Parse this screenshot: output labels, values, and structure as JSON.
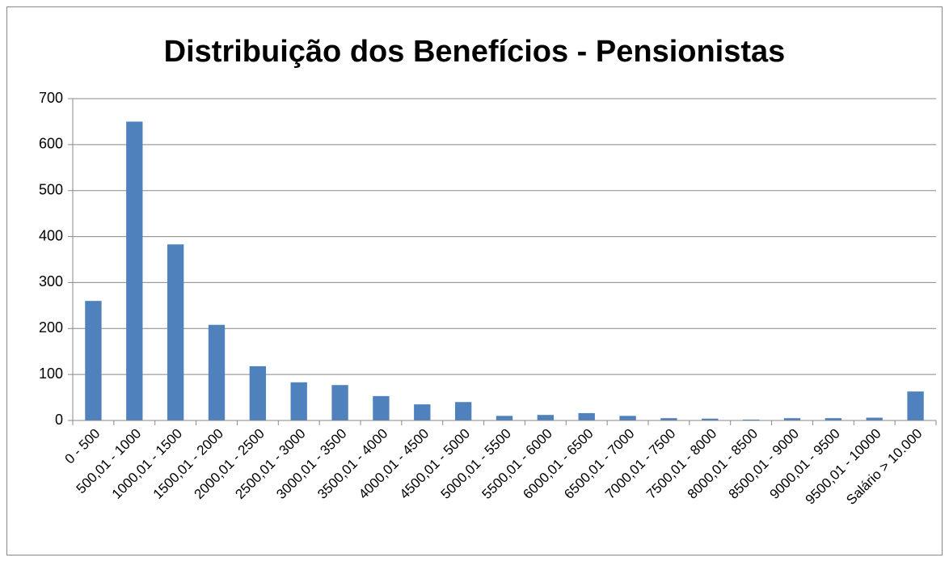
{
  "chart_data": {
    "type": "bar",
    "title": "Distribuição dos Benefícios - Pensionistas",
    "categories": [
      "0 - 500",
      "500,01 - 1000",
      "1000,01 - 1500",
      "1500,01 - 2000",
      "2000,01 - 2500",
      "2500,01 - 3000",
      "3000,01 - 3500",
      "3500,01 - 4000",
      "4000,01 - 4500",
      "4500,01 - 5000",
      "5000,01 - 5500",
      "5500,01 - 6000",
      "6000,01 - 6500",
      "6500,01 - 7000",
      "7000,01 - 7500",
      "7500,01 - 8000",
      "8000,01 - 8500",
      "8500,01 - 9000",
      "9000,01 - 9500",
      "9500,01 - 10000",
      "Salário > 10.000"
    ],
    "values": [
      260,
      650,
      383,
      208,
      118,
      83,
      77,
      53,
      35,
      40,
      10,
      12,
      16,
      10,
      5,
      4,
      2,
      5,
      5,
      6,
      63
    ],
    "color": "#4f81bd",
    "ylim": [
      0,
      700
    ],
    "yticks": [
      0,
      100,
      200,
      300,
      400,
      500,
      600,
      700
    ],
    "grid": true
  }
}
